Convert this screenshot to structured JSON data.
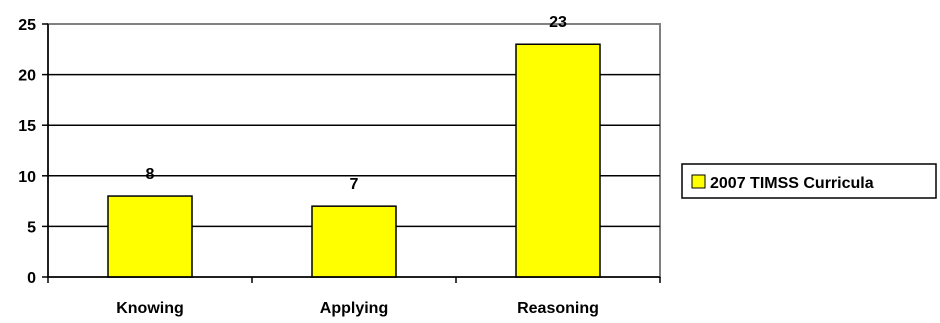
{
  "chart_data": {
    "type": "bar",
    "categories": [
      "Knowing",
      "Applying",
      "Reasoning"
    ],
    "series": [
      {
        "name": "2007 TIMSS Curricula",
        "values": [
          8,
          7,
          23
        ],
        "color": "#ffff00"
      }
    ],
    "ylim": [
      0,
      25
    ],
    "yticks": [
      0,
      5,
      10,
      15,
      20,
      25
    ],
    "grid": true,
    "legend": "right",
    "plot_border_color": "#808080"
  }
}
